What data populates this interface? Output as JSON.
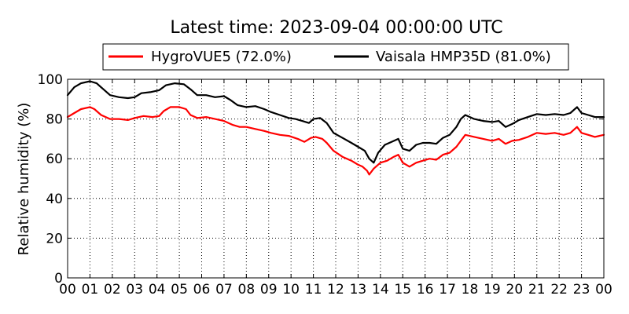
{
  "chart_data": {
    "type": "line",
    "title": "Latest time: 2023-09-04 00:00:00 UTC",
    "xlabel": "",
    "ylabel": "Relative humidity (%)",
    "xlim": [
      0,
      24
    ],
    "ylim": [
      0,
      100
    ],
    "grid": true,
    "legend_position": "top-center",
    "x_ticks": [
      "00",
      "01",
      "02",
      "03",
      "04",
      "05",
      "06",
      "07",
      "08",
      "09",
      "10",
      "11",
      "12",
      "13",
      "14",
      "15",
      "16",
      "17",
      "18",
      "19",
      "20",
      "21",
      "22",
      "23",
      "00"
    ],
    "y_ticks": [
      0,
      20,
      40,
      60,
      80,
      100
    ],
    "series": [
      {
        "name": "HygroVUE5 (72.0%)",
        "color": "#ff0000",
        "points": [
          [
            0,
            81
          ],
          [
            0.3,
            83
          ],
          [
            0.6,
            85
          ],
          [
            1.0,
            86
          ],
          [
            1.2,
            85
          ],
          [
            1.5,
            82
          ],
          [
            1.9,
            80
          ],
          [
            2.3,
            80
          ],
          [
            2.7,
            79.5
          ],
          [
            3.0,
            80.5
          ],
          [
            3.4,
            81.5
          ],
          [
            3.8,
            81
          ],
          [
            4.1,
            81.5
          ],
          [
            4.3,
            84
          ],
          [
            4.6,
            86
          ],
          [
            5.0,
            86
          ],
          [
            5.3,
            85
          ],
          [
            5.5,
            82
          ],
          [
            5.8,
            80.5
          ],
          [
            6.2,
            81
          ],
          [
            6.6,
            80
          ],
          [
            7.0,
            79
          ],
          [
            7.4,
            77
          ],
          [
            7.7,
            76
          ],
          [
            8.0,
            76
          ],
          [
            8.4,
            75
          ],
          [
            8.8,
            74
          ],
          [
            9.1,
            73
          ],
          [
            9.5,
            72
          ],
          [
            9.9,
            71.5
          ],
          [
            10.3,
            70
          ],
          [
            10.6,
            68.5
          ],
          [
            10.9,
            70.5
          ],
          [
            11.1,
            71
          ],
          [
            11.4,
            70
          ],
          [
            11.6,
            68
          ],
          [
            11.9,
            64
          ],
          [
            12.3,
            61
          ],
          [
            12.7,
            59
          ],
          [
            13.0,
            57
          ],
          [
            13.2,
            56
          ],
          [
            13.4,
            54
          ],
          [
            13.5,
            52
          ],
          [
            13.7,
            55
          ],
          [
            14.0,
            58
          ],
          [
            14.3,
            59
          ],
          [
            14.6,
            61
          ],
          [
            14.8,
            62
          ],
          [
            15.0,
            58
          ],
          [
            15.3,
            56
          ],
          [
            15.6,
            58
          ],
          [
            15.9,
            59
          ],
          [
            16.2,
            60
          ],
          [
            16.5,
            59.5
          ],
          [
            16.8,
            62
          ],
          [
            17.1,
            63
          ],
          [
            17.4,
            66
          ],
          [
            17.6,
            69
          ],
          [
            17.8,
            72
          ],
          [
            18.2,
            71
          ],
          [
            18.6,
            70
          ],
          [
            19.0,
            69
          ],
          [
            19.3,
            70
          ],
          [
            19.6,
            67.5
          ],
          [
            19.9,
            69
          ],
          [
            20.2,
            69.5
          ],
          [
            20.6,
            71
          ],
          [
            21.0,
            73
          ],
          [
            21.4,
            72.5
          ],
          [
            21.8,
            73
          ],
          [
            22.2,
            72
          ],
          [
            22.5,
            73
          ],
          [
            22.8,
            76
          ],
          [
            23.0,
            73
          ],
          [
            23.3,
            72
          ],
          [
            23.6,
            71
          ],
          [
            24.0,
            72
          ]
        ]
      },
      {
        "name": "Vaisala HMP35D (81.0%)",
        "color": "#000000",
        "points": [
          [
            0,
            92
          ],
          [
            0.3,
            96
          ],
          [
            0.6,
            98
          ],
          [
            1.0,
            99
          ],
          [
            1.3,
            98
          ],
          [
            1.6,
            95
          ],
          [
            1.9,
            92
          ],
          [
            2.3,
            91
          ],
          [
            2.7,
            90.5
          ],
          [
            3.0,
            91
          ],
          [
            3.3,
            93
          ],
          [
            3.7,
            93.5
          ],
          [
            4.1,
            94.5
          ],
          [
            4.4,
            97
          ],
          [
            4.8,
            98
          ],
          [
            5.2,
            97.5
          ],
          [
            5.5,
            95
          ],
          [
            5.8,
            92
          ],
          [
            6.2,
            92
          ],
          [
            6.6,
            91
          ],
          [
            7.0,
            91.5
          ],
          [
            7.3,
            89.5
          ],
          [
            7.6,
            87
          ],
          [
            8.0,
            86
          ],
          [
            8.4,
            86.5
          ],
          [
            8.8,
            85
          ],
          [
            9.1,
            83.5
          ],
          [
            9.5,
            82
          ],
          [
            9.9,
            80.5
          ],
          [
            10.2,
            80
          ],
          [
            10.5,
            79
          ],
          [
            10.8,
            78
          ],
          [
            11.0,
            80
          ],
          [
            11.3,
            80.5
          ],
          [
            11.6,
            78
          ],
          [
            11.9,
            73
          ],
          [
            12.3,
            70.5
          ],
          [
            12.7,
            68
          ],
          [
            13.0,
            66
          ],
          [
            13.3,
            64
          ],
          [
            13.5,
            60
          ],
          [
            13.7,
            58
          ],
          [
            13.9,
            63
          ],
          [
            14.2,
            67
          ],
          [
            14.5,
            68.5
          ],
          [
            14.8,
            70
          ],
          [
            15.0,
            65
          ],
          [
            15.3,
            64
          ],
          [
            15.6,
            67
          ],
          [
            15.9,
            68
          ],
          [
            16.2,
            68
          ],
          [
            16.5,
            67.5
          ],
          [
            16.8,
            70.5
          ],
          [
            17.1,
            72
          ],
          [
            17.4,
            76
          ],
          [
            17.6,
            80
          ],
          [
            17.8,
            82
          ],
          [
            18.2,
            80
          ],
          [
            18.6,
            79
          ],
          [
            19.0,
            78.5
          ],
          [
            19.3,
            79
          ],
          [
            19.6,
            76
          ],
          [
            19.9,
            77.5
          ],
          [
            20.2,
            79.5
          ],
          [
            20.6,
            81
          ],
          [
            21.0,
            82.5
          ],
          [
            21.4,
            82
          ],
          [
            21.8,
            82.5
          ],
          [
            22.2,
            82
          ],
          [
            22.5,
            83
          ],
          [
            22.8,
            86
          ],
          [
            23.0,
            83
          ],
          [
            23.3,
            82
          ],
          [
            23.6,
            81
          ],
          [
            24.0,
            81
          ]
        ]
      }
    ]
  }
}
